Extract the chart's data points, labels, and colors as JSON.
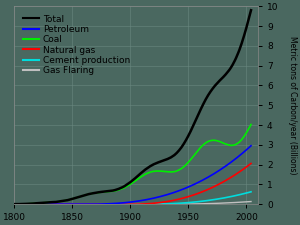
{
  "title": "",
  "ylabel": "Metric tons of Carbon/year (Billions)",
  "xlim": [
    1800,
    2010
  ],
  "ylim": [
    0,
    10
  ],
  "yticks": [
    0,
    1,
    2,
    3,
    4,
    5,
    6,
    7,
    8,
    9,
    10
  ],
  "xticks": [
    1800,
    1850,
    1900,
    1950,
    2000
  ],
  "background_color": "#4a6860",
  "plot_bg_color": "#4a6860",
  "grid_color": "#6a8880",
  "series": {
    "Total": {
      "color": "#000000",
      "lw": 1.8
    },
    "Petroleum": {
      "color": "#0000ff",
      "lw": 1.2
    },
    "Coal": {
      "color": "#00ee00",
      "lw": 1.2
    },
    "Natural gas": {
      "color": "#ff0000",
      "lw": 1.2
    },
    "Cement production": {
      "color": "#00dddd",
      "lw": 1.2
    },
    "Gas Flaring": {
      "color": "#c0c0c0",
      "lw": 1.0
    }
  },
  "legend_fontsize": 6.5,
  "tick_fontsize": 6.5,
  "ylabel_fontsize": 5.5
}
